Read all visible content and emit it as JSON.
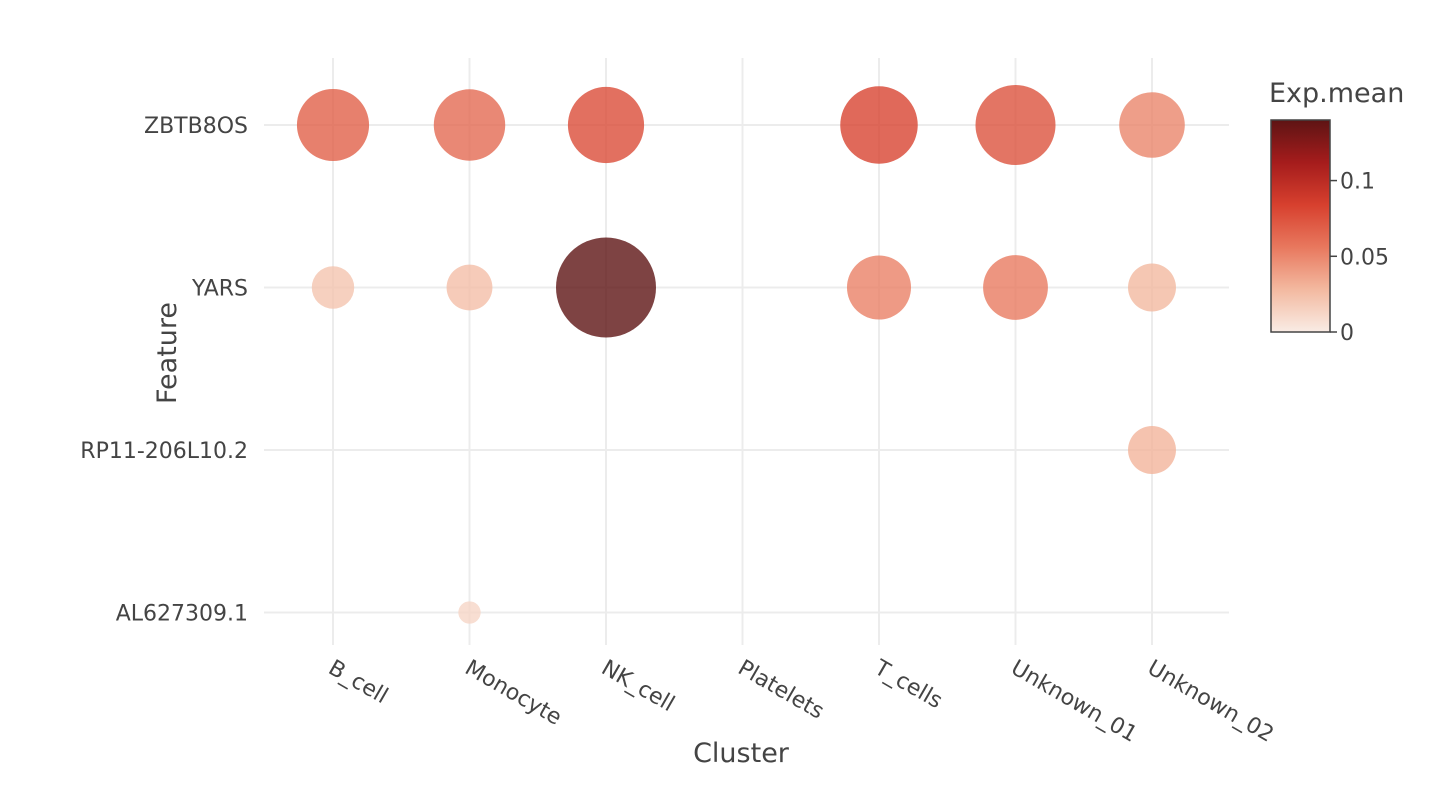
{
  "chart_data": {
    "type": "scatter",
    "subtype": "dot-plot",
    "xlabel": "Cluster",
    "ylabel": "Feature",
    "categories": [
      "B_cell",
      "Monocyte",
      "NK_cell",
      "Platelets",
      "T_cells",
      "Unknown_01",
      "Unknown_02"
    ],
    "features": [
      "ZBTB8OS",
      "YARS",
      "RP11-206L10.2",
      "AL627309.1"
    ],
    "grid": true,
    "colorbar": {
      "title": "Exp.mean",
      "min": 0,
      "max": 0.14,
      "ticks": [
        0,
        0.05,
        0.1
      ],
      "tick_labels": [
        "0",
        "0.05",
        "0.1"
      ],
      "colorscale": [
        "#f9ece5",
        "#f3b9a0",
        "#e8785e",
        "#d7402e",
        "#a51c1c",
        "#5e1414"
      ]
    },
    "points": [
      {
        "feature": "ZBTB8OS",
        "cluster": "B_cell",
        "exp_mean": 0.068,
        "pct": 0.52
      },
      {
        "feature": "ZBTB8OS",
        "cluster": "Monocyte",
        "exp_mean": 0.063,
        "pct": 0.51
      },
      {
        "feature": "ZBTB8OS",
        "cluster": "NK_cell",
        "exp_mean": 0.078,
        "pct": 0.58
      },
      {
        "feature": "ZBTB8OS",
        "cluster": "T_cells",
        "exp_mean": 0.082,
        "pct": 0.6
      },
      {
        "feature": "ZBTB8OS",
        "cluster": "Unknown_01",
        "exp_mean": 0.075,
        "pct": 0.64
      },
      {
        "feature": "ZBTB8OS",
        "cluster": "Unknown_02",
        "exp_mean": 0.05,
        "pct": 0.43
      },
      {
        "feature": "YARS",
        "cluster": "B_cell",
        "exp_mean": 0.022,
        "pct": 0.18
      },
      {
        "feature": "YARS",
        "cluster": "Monocyte",
        "exp_mean": 0.025,
        "pct": 0.21
      },
      {
        "feature": "YARS",
        "cluster": "NK_cell",
        "exp_mean": 0.14,
        "pct": 1.0
      },
      {
        "feature": "YARS",
        "cluster": "T_cells",
        "exp_mean": 0.052,
        "pct": 0.41
      },
      {
        "feature": "YARS",
        "cluster": "Unknown_01",
        "exp_mean": 0.055,
        "pct": 0.42
      },
      {
        "feature": "YARS",
        "cluster": "Unknown_02",
        "exp_mean": 0.028,
        "pct": 0.23
      },
      {
        "feature": "RP11-206L10.2",
        "cluster": "Unknown_02",
        "exp_mean": 0.03,
        "pct": 0.23
      },
      {
        "feature": "AL627309.1",
        "cluster": "Monocyte",
        "exp_mean": 0.012,
        "pct": 0.05
      }
    ]
  }
}
